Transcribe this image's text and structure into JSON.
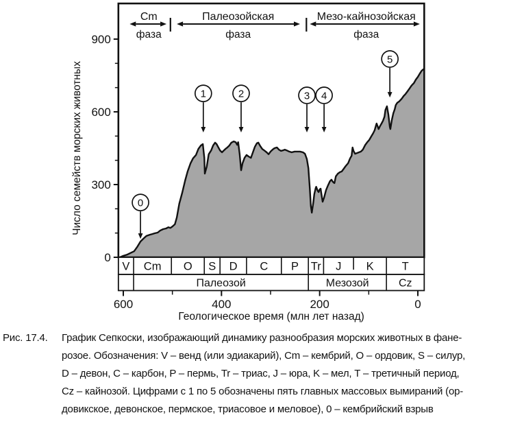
{
  "figure_label": "Рис. 17.4.",
  "caption_lines": [
    "График Сепкоски, изображающий динамику разнообразия морских животных в фане-",
    "розое. Обозначения: V – венд (или эдиакарий), Cm – кембрий, O – ордовик, S – силур,",
    "D – девон, C – карбон, P – пермь, Tr – триас, J – юра, K – мел, T – третичный период,",
    "Cz – кайнозой. Цифрами с 1 по 5 обозначены пять главных массовых вымираний (ор-",
    "довикское, девонское, пермское, триасовое и меловое), 0 – кембрийский взрыв"
  ],
  "colors": {
    "fill": "#a6a6a6",
    "line": "#111111",
    "text": "#111111",
    "background": "#ffffff"
  },
  "chart_data": {
    "type": "area",
    "title": "",
    "xlabel": "Геологическое время (млн лет назад)",
    "ylabel": "Число семейств морских животных",
    "x_axis_reversed": true,
    "xlim": [
      610,
      -13
    ],
    "ylim": [
      0,
      1047
    ],
    "x_major_ticks": [
      600,
      400,
      200,
      0
    ],
    "x_minor_ticks": [
      500,
      300,
      100
    ],
    "y_major_ticks": [
      0,
      300,
      600,
      900
    ],
    "y_minor_ticks": [
      100,
      200,
      400,
      500,
      700,
      800
    ],
    "grid": false,
    "series": [
      {
        "name": "Число семейств морских животных",
        "points": [
          [
            607,
            0
          ],
          [
            600,
            6
          ],
          [
            592,
            11
          ],
          [
            583,
            20
          ],
          [
            578,
            25
          ],
          [
            572,
            42
          ],
          [
            565,
            65
          ],
          [
            558,
            79
          ],
          [
            553,
            88
          ],
          [
            546,
            93
          ],
          [
            541,
            96
          ],
          [
            536,
            99
          ],
          [
            530,
            102
          ],
          [
            525,
            110
          ],
          [
            519,
            116
          ],
          [
            513,
            119
          ],
          [
            508,
            124
          ],
          [
            504,
            121
          ],
          [
            500,
            127
          ],
          [
            495,
            136
          ],
          [
            491,
            164
          ],
          [
            486,
            221
          ],
          [
            480,
            266
          ],
          [
            474,
            317
          ],
          [
            469,
            354
          ],
          [
            463,
            388
          ],
          [
            458,
            408
          ],
          [
            452,
            422
          ],
          [
            447,
            447
          ],
          [
            442,
            461
          ],
          [
            438,
            467
          ],
          [
            435,
            410
          ],
          [
            434,
            345
          ],
          [
            430,
            374
          ],
          [
            426,
            425
          ],
          [
            421,
            441
          ],
          [
            417,
            461
          ],
          [
            413,
            473
          ],
          [
            410,
            467
          ],
          [
            407,
            456
          ],
          [
            403,
            441
          ],
          [
            399,
            433
          ],
          [
            396,
            439
          ],
          [
            392,
            447
          ],
          [
            388,
            453
          ],
          [
            384,
            461
          ],
          [
            380,
            473
          ],
          [
            375,
            478
          ],
          [
            371,
            475
          ],
          [
            368,
            464
          ],
          [
            366,
            475
          ],
          [
            363,
            425
          ],
          [
            360,
            359
          ],
          [
            357,
            388
          ],
          [
            353,
            410
          ],
          [
            349,
            422
          ],
          [
            345,
            416
          ],
          [
            340,
            410
          ],
          [
            336,
            433
          ],
          [
            332,
            456
          ],
          [
            328,
            470
          ],
          [
            325,
            473
          ],
          [
            321,
            459
          ],
          [
            317,
            447
          ],
          [
            313,
            441
          ],
          [
            308,
            433
          ],
          [
            304,
            425
          ],
          [
            300,
            436
          ],
          [
            296,
            444
          ],
          [
            292,
            450
          ],
          [
            287,
            453
          ],
          [
            283,
            444
          ],
          [
            279,
            439
          ],
          [
            275,
            441
          ],
          [
            271,
            444
          ],
          [
            267,
            441
          ],
          [
            262,
            436
          ],
          [
            257,
            433
          ],
          [
            251,
            436
          ],
          [
            246,
            436
          ],
          [
            240,
            436
          ],
          [
            234,
            433
          ],
          [
            230,
            427
          ],
          [
            226,
            405
          ],
          [
            223,
            368
          ],
          [
            220,
            283
          ],
          [
            218,
            212
          ],
          [
            216,
            184
          ],
          [
            213,
            226
          ],
          [
            211,
            260
          ],
          [
            208,
            286
          ],
          [
            207,
            291
          ],
          [
            204,
            274
          ],
          [
            202,
            269
          ],
          [
            200,
            280
          ],
          [
            198,
            283
          ],
          [
            197,
            269
          ],
          [
            194,
            229
          ],
          [
            191,
            246
          ],
          [
            187,
            277
          ],
          [
            183,
            297
          ],
          [
            179,
            314
          ],
          [
            176,
            320
          ],
          [
            173,
            311
          ],
          [
            170,
            306
          ],
          [
            167,
            334
          ],
          [
            163,
            345
          ],
          [
            159,
            351
          ],
          [
            155,
            354
          ],
          [
            151,
            365
          ],
          [
            147,
            376
          ],
          [
            142,
            388
          ],
          [
            138,
            408
          ],
          [
            135,
            419
          ],
          [
            133,
            453
          ],
          [
            131,
            439
          ],
          [
            128,
            427
          ],
          [
            124,
            430
          ],
          [
            120,
            433
          ],
          [
            116,
            436
          ],
          [
            112,
            444
          ],
          [
            107,
            464
          ],
          [
            103,
            475
          ],
          [
            99,
            484
          ],
          [
            95,
            498
          ],
          [
            91,
            512
          ],
          [
            88,
            524
          ],
          [
            85,
            546
          ],
          [
            84,
            552
          ],
          [
            81,
            535
          ],
          [
            80,
            529
          ],
          [
            77,
            541
          ],
          [
            74,
            552
          ],
          [
            71,
            563
          ],
          [
            68,
            580
          ],
          [
            66,
            608
          ],
          [
            63,
            623
          ],
          [
            60,
            589
          ],
          [
            57,
            538
          ],
          [
            56,
            529
          ],
          [
            53,
            566
          ],
          [
            50,
            594
          ],
          [
            47,
            611
          ],
          [
            45,
            628
          ],
          [
            42,
            637
          ],
          [
            38,
            643
          ],
          [
            33,
            654
          ],
          [
            29,
            665
          ],
          [
            25,
            674
          ],
          [
            21,
            685
          ],
          [
            17,
            696
          ],
          [
            13,
            708
          ],
          [
            8,
            719
          ],
          [
            4,
            733
          ],
          [
            0,
            744
          ],
          [
            -4,
            758
          ],
          [
            -8,
            770
          ],
          [
            -13,
            778
          ]
        ]
      }
    ],
    "timescale": {
      "periods": [
        {
          "label": "V",
          "from": 610,
          "to": 579
        },
        {
          "label": "Cm",
          "from": 579,
          "to": 502
        },
        {
          "label": "O",
          "from": 502,
          "to": 435
        },
        {
          "label": "S",
          "from": 435,
          "to": 403
        },
        {
          "label": "D",
          "from": 403,
          "to": 349
        },
        {
          "label": "C",
          "from": 349,
          "to": 278
        },
        {
          "label": "P",
          "from": 278,
          "to": 223
        },
        {
          "label": "Tr",
          "from": 223,
          "to": 192
        },
        {
          "label": "J",
          "from": 192,
          "to": 131
        },
        {
          "label": "K",
          "from": 131,
          "to": 64,
          "short_divider": true
        },
        {
          "label": "T",
          "from": 64,
          "to": -13
        }
      ],
      "eras": [
        {
          "label": "",
          "from": 610,
          "to": 579
        },
        {
          "label": "Палеозой",
          "from": 579,
          "to": 223
        },
        {
          "label": "Мезозой",
          "from": 223,
          "to": 64
        },
        {
          "label": "Cz",
          "from": 64,
          "to": -13
        }
      ]
    },
    "phases": [
      {
        "name": "Cm",
        "sub": "фаза",
        "from": 587,
        "to": 512,
        "label_at": 548
      },
      {
        "name": "Палеозойская",
        "sub": "фаза",
        "from": 491,
        "to": 240,
        "label_at": 366
      },
      {
        "name": "Мезо-кайнозойская",
        "sub": "фаза",
        "from": 220,
        "to": -4,
        "label_at": 105
      }
    ],
    "phase_separators": [
      504,
      227
    ],
    "markers": [
      {
        "label": "0",
        "t": 565,
        "circle_f": 226,
        "tip_f": 76
      },
      {
        "label": "1",
        "t": 437,
        "circle_f": 676,
        "tip_f": 515
      },
      {
        "label": "2",
        "t": 360,
        "circle_f": 676,
        "tip_f": 515
      },
      {
        "label": "3",
        "t": 226,
        "circle_f": 668,
        "tip_f": 515
      },
      {
        "label": "4",
        "t": 191,
        "circle_f": 668,
        "tip_f": 515
      },
      {
        "label": "5",
        "t": 57,
        "circle_f": 818,
        "tip_f": 659
      }
    ]
  }
}
